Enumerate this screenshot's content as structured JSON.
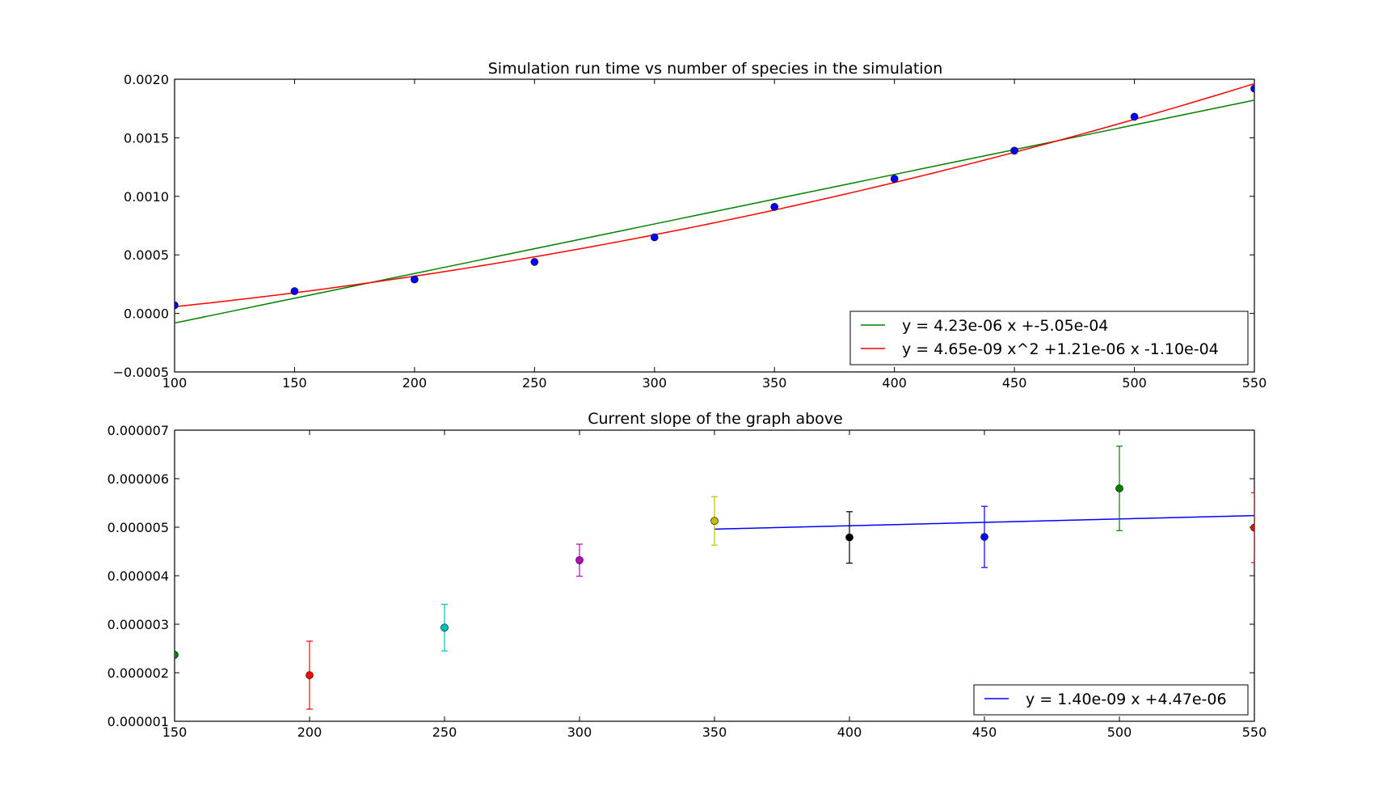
{
  "chart_data": [
    {
      "type": "scatter",
      "title": "Simulation run time vs number of species in the simulation",
      "xlabel": "",
      "ylabel": "",
      "xlim": [
        100,
        550
      ],
      "ylim": [
        -0.0005,
        0.002
      ],
      "xticks": [
        "100",
        "150",
        "200",
        "250",
        "300",
        "350",
        "400",
        "450",
        "500",
        "550"
      ],
      "yticks": [
        "0.0020",
        "0.0015",
        "0.0010",
        "0.0005",
        "0.0000",
        "−0.0005"
      ],
      "points": {
        "color": "#0000ff",
        "x": [
          100,
          150,
          200,
          250,
          300,
          350,
          400,
          450,
          500,
          550
        ],
        "y": [
          7e-05,
          0.00019,
          0.00029,
          0.00044,
          0.00065,
          0.00091,
          0.00115,
          0.00139,
          0.00168,
          0.00192
        ]
      },
      "fits": [
        {
          "label": "y = 4.23e-06 x +-5.05e-04",
          "color": "#008000",
          "coef": [
            0,
            4.23e-06,
            -0.000505
          ]
        },
        {
          "label": "y = 4.65e-09 x^2 +1.21e-06 x -1.10e-04",
          "color": "#ff0000",
          "coef": [
            4.65e-09,
            1.21e-06,
            -0.00011
          ]
        }
      ],
      "legend_position": "lower-right",
      "grid": false
    },
    {
      "type": "errorbar",
      "title": "Current slope of the graph above",
      "xlabel": "",
      "ylabel": "",
      "xlim": [
        150,
        550
      ],
      "ylim": [
        1e-06,
        7e-06
      ],
      "xticks": [
        "150",
        "200",
        "250",
        "300",
        "350",
        "400",
        "450",
        "500",
        "550"
      ],
      "yticks": [
        "0.000007",
        "0.000006",
        "0.000005",
        "0.000004",
        "0.000003",
        "0.000002",
        "0.000001"
      ],
      "points": [
        {
          "x": 150,
          "y": 2.37e-06,
          "err": null,
          "color": "#008000"
        },
        {
          "x": 200,
          "y": 1.95e-06,
          "err": 7e-07,
          "color": "#ff0000"
        },
        {
          "x": 250,
          "y": 2.93e-06,
          "err": 4.8e-07,
          "color": "#00bfbf"
        },
        {
          "x": 300,
          "y": 4.32e-06,
          "err": 3.3e-07,
          "color": "#bf00bf"
        },
        {
          "x": 350,
          "y": 5.13e-06,
          "err": 5e-07,
          "color": "#bfbf00"
        },
        {
          "x": 400,
          "y": 4.79e-06,
          "err": 5.3e-07,
          "color": "#000000"
        },
        {
          "x": 450,
          "y": 4.8e-06,
          "err": 6.3e-07,
          "color": "#0000ff"
        },
        {
          "x": 500,
          "y": 5.8e-06,
          "err": 8.7e-07,
          "color": "#008000"
        },
        {
          "x": 550,
          "y": 4.99e-06,
          "err": 7.2e-07,
          "color": "#ff0000"
        }
      ],
      "fits": [
        {
          "label": "y = 1.40e-09 x +4.47e-06",
          "color": "#0000ff",
          "coef": [
            0,
            1.4e-09,
            4.47e-06
          ],
          "xrange": [
            350,
            550
          ]
        }
      ],
      "legend_position": "lower-right",
      "grid": false
    }
  ]
}
